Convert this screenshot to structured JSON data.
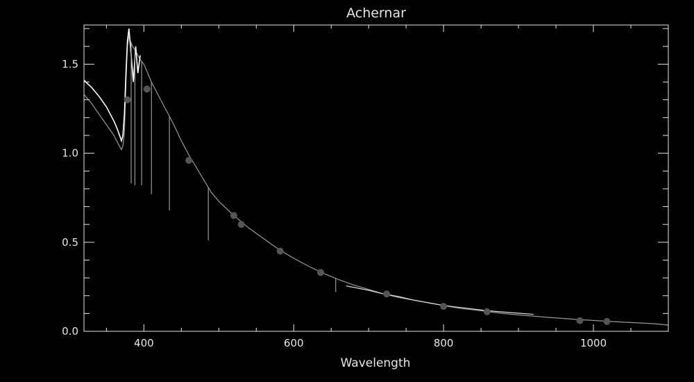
{
  "chart_data": {
    "type": "line",
    "title": "Achernar",
    "xlabel": "Wavelength",
    "ylabel": "",
    "xlim": [
      320,
      1100
    ],
    "ylim": [
      0.0,
      1.72
    ],
    "xticks": [
      400,
      600,
      800,
      1000
    ],
    "xtick_labels": [
      "400",
      "600",
      "800",
      "1000"
    ],
    "yticks": [
      0.0,
      0.5,
      1.0,
      1.5
    ],
    "ytick_labels": [
      "0.0",
      "0.5",
      "1.0",
      "1.5"
    ],
    "grid": false,
    "colors": {
      "background": "#000000",
      "axes": "#e6e6e6",
      "spectrum_blue": "#ffffff",
      "spectrum_red": "#dddddd",
      "model": "#9a9a9a",
      "points": "#555555"
    },
    "series": [
      {
        "style": "spectrum-blue",
        "x": [
          320,
          330,
          340,
          350,
          360,
          365,
          370,
          372,
          374,
          376,
          378,
          380,
          383,
          386,
          389,
          392,
          395
        ],
        "y": [
          1.41,
          1.37,
          1.32,
          1.26,
          1.18,
          1.13,
          1.07,
          1.1,
          1.22,
          1.45,
          1.63,
          1.7,
          1.55,
          1.4,
          1.6,
          1.45,
          1.55
        ]
      },
      {
        "style": "model",
        "x": [
          320,
          330,
          340,
          350,
          360,
          366,
          370,
          372,
          374,
          376,
          378,
          380,
          382,
          385,
          388,
          392,
          396,
          400,
          410,
          420,
          430,
          440,
          450,
          460,
          470,
          480,
          490,
          500,
          520,
          540,
          560,
          580,
          600,
          620,
          640,
          660,
          680,
          700,
          720,
          740,
          760,
          780,
          800,
          820,
          840,
          860,
          880,
          900,
          920,
          940,
          960,
          980,
          1000,
          1020,
          1040,
          1060,
          1080,
          1100
        ],
        "y": [
          1.33,
          1.28,
          1.22,
          1.16,
          1.1,
          1.05,
          1.02,
          1.04,
          1.12,
          1.4,
          1.6,
          1.66,
          1.63,
          1.6,
          1.58,
          1.55,
          1.52,
          1.5,
          1.4,
          1.32,
          1.24,
          1.16,
          1.07,
          0.99,
          0.92,
          0.85,
          0.78,
          0.73,
          0.65,
          0.58,
          0.52,
          0.46,
          0.41,
          0.365,
          0.325,
          0.29,
          0.26,
          0.235,
          0.21,
          0.19,
          0.175,
          0.16,
          0.145,
          0.13,
          0.12,
          0.11,
          0.1,
          0.092,
          0.085,
          0.078,
          0.072,
          0.066,
          0.061,
          0.056,
          0.051,
          0.047,
          0.043,
          0.035
        ]
      },
      {
        "style": "spectrum-red",
        "x": [
          670,
          700,
          720,
          740,
          760,
          780,
          800,
          830,
          860,
          890,
          920
        ],
        "y": [
          0.255,
          0.23,
          0.21,
          0.195,
          0.175,
          0.16,
          0.145,
          0.13,
          0.115,
          0.105,
          0.095
        ]
      },
      {
        "style": "points",
        "x": [
          378,
          404,
          460,
          520,
          530,
          582,
          636,
          724,
          800,
          858,
          982,
          1018
        ],
        "y": [
          1.3,
          1.36,
          0.96,
          0.65,
          0.6,
          0.45,
          0.33,
          0.21,
          0.14,
          0.11,
          0.06,
          0.055
        ]
      }
    ],
    "absorption_lines": [
      {
        "x": 383,
        "min": 0.83
      },
      {
        "x": 388,
        "min": 0.82
      },
      {
        "x": 397,
        "min": 0.82
      },
      {
        "x": 410,
        "min": 0.77
      },
      {
        "x": 434,
        "min": 0.68
      },
      {
        "x": 486,
        "min": 0.51
      },
      {
        "x": 656,
        "min": 0.22
      }
    ]
  }
}
